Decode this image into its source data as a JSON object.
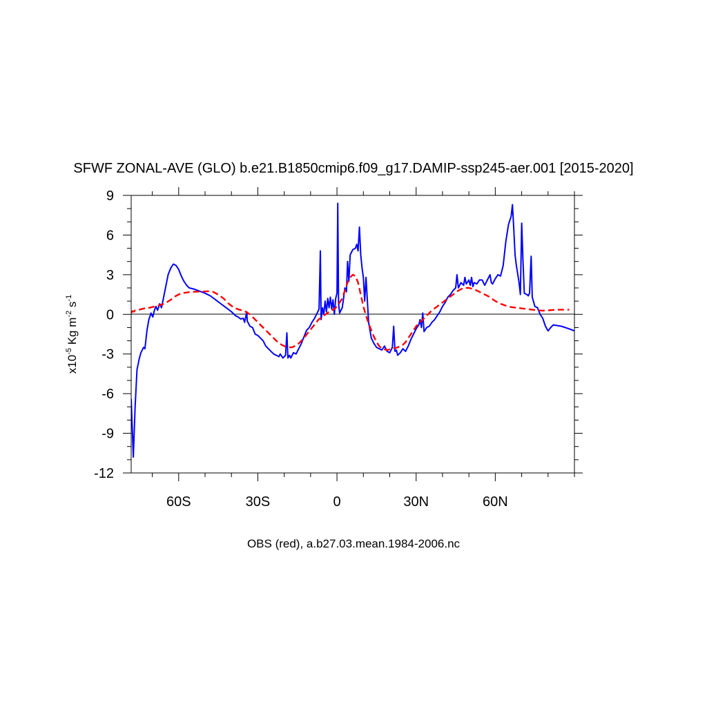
{
  "chart_data": {
    "type": "line",
    "title": "SFWF ZONAL-AVE (GLO) b.e21.B1850cmip6.f09_g17.DAMIP-ssp245-aer.001 [2015-2020]",
    "ylabel": {
      "prefix": "x10",
      "prefix_exp": "-5",
      "unit_a": " Kg m",
      "unit_a_exp": "-2",
      "unit_b": " s",
      "unit_b_exp": "-1"
    },
    "xlabel": "OBS (red), a.b27.03.mean.1984-2006.nc",
    "xlim": [
      -78,
      90
    ],
    "ylim": [
      -12,
      9
    ],
    "x_ticks": [
      {
        "value": -60,
        "label": "60S"
      },
      {
        "value": -30,
        "label": "30S"
      },
      {
        "value": 0,
        "label": "0"
      },
      {
        "value": 30,
        "label": "30N"
      },
      {
        "value": 60,
        "label": "60N"
      }
    ],
    "y_ticks": [
      {
        "value": 9,
        "label": "9"
      },
      {
        "value": 6,
        "label": "6"
      },
      {
        "value": 3,
        "label": "3"
      },
      {
        "value": 0,
        "label": "0"
      },
      {
        "value": -3,
        "label": "-3"
      },
      {
        "value": -6,
        "label": "-6"
      },
      {
        "value": -9,
        "label": "-9"
      },
      {
        "value": -12,
        "label": "-12"
      }
    ],
    "zero_line": true,
    "series": [
      {
        "color": "#0000ff",
        "style": "solid",
        "points": [
          [
            -78,
            -6.4
          ],
          [
            -77.2,
            -10.8
          ],
          [
            -76.5,
            -7
          ],
          [
            -75.8,
            -4.2
          ],
          [
            -75,
            -3.4
          ],
          [
            -74.3,
            -2.9
          ],
          [
            -73.3,
            -2.5
          ],
          [
            -72.8,
            -2.6
          ],
          [
            -72,
            -1.2
          ],
          [
            -71.3,
            -0.4
          ],
          [
            -70.5,
            0.1
          ],
          [
            -69.8,
            -0.2
          ],
          [
            -69.2,
            0.3
          ],
          [
            -68.6,
            0.6
          ],
          [
            -68,
            0.3
          ],
          [
            -67.2,
            0.8
          ],
          [
            -66.5,
            0.5
          ],
          [
            -66,
            1.0
          ],
          [
            -65,
            2.0
          ],
          [
            -64,
            3.0
          ],
          [
            -63,
            3.5
          ],
          [
            -62,
            3.8
          ],
          [
            -61,
            3.7
          ],
          [
            -60,
            3.4
          ],
          [
            -59,
            2.9
          ],
          [
            -58,
            2.5
          ],
          [
            -57,
            2.2
          ],
          [
            -56,
            2.0
          ],
          [
            -54,
            1.9
          ],
          [
            -52,
            1.75
          ],
          [
            -50,
            1.6
          ],
          [
            -48,
            1.4
          ],
          [
            -46,
            1.1
          ],
          [
            -44,
            0.8
          ],
          [
            -42,
            0.5
          ],
          [
            -40,
            0.2
          ],
          [
            -38.5,
            -0.1
          ],
          [
            -37.5,
            -0.2
          ],
          [
            -36.5,
            -0.35
          ],
          [
            -35.5,
            -0.3
          ],
          [
            -35,
            -0.6
          ],
          [
            -34.2,
            0.2
          ],
          [
            -34,
            -0.5
          ],
          [
            -33,
            -0.9
          ],
          [
            -32,
            -1.0
          ],
          [
            -31,
            -1.5
          ],
          [
            -30,
            -1.6
          ],
          [
            -29,
            -1.8
          ],
          [
            -28,
            -2.0
          ],
          [
            -27,
            -2.4
          ],
          [
            -26,
            -2.6
          ],
          [
            -25,
            -2.8
          ],
          [
            -24,
            -3.0
          ],
          [
            -23,
            -3.1
          ],
          [
            -22,
            -3.2
          ],
          [
            -21.5,
            -3.0
          ],
          [
            -20.5,
            -3.3
          ],
          [
            -19.5,
            -3.1
          ],
          [
            -19,
            -1.4
          ],
          [
            -18.6,
            -3.3
          ],
          [
            -18,
            -3.1
          ],
          [
            -17.5,
            -3.3
          ],
          [
            -16.5,
            -2.9
          ],
          [
            -15.5,
            -3.0
          ],
          [
            -14.5,
            -2.6
          ],
          [
            -13.5,
            -2.2
          ],
          [
            -12.5,
            -1.7
          ],
          [
            -11.5,
            -1.2
          ],
          [
            -10.5,
            -1.0
          ],
          [
            -9.5,
            -0.6
          ],
          [
            -8.5,
            -0.3
          ],
          [
            -7.5,
            0.1
          ],
          [
            -6.8,
            0.4
          ],
          [
            -6.3,
            4.8
          ],
          [
            -6,
            -0.4
          ],
          [
            -5.5,
            0.5
          ],
          [
            -5,
            0.0
          ],
          [
            -4.5,
            1.0
          ],
          [
            -4,
            0.2
          ],
          [
            -3.5,
            1.2
          ],
          [
            -3,
            0.5
          ],
          [
            -2.5,
            1.3
          ],
          [
            -2,
            0.4
          ],
          [
            -1.5,
            1.1
          ],
          [
            -1,
            0.0
          ],
          [
            -0.5,
            1.2
          ],
          [
            0,
            1.6
          ],
          [
            0.3,
            8.4
          ],
          [
            0.6,
            0.8
          ],
          [
            1,
            0.1
          ],
          [
            2,
            0.5
          ],
          [
            2.5,
            1.2
          ],
          [
            3,
            2.0
          ],
          [
            3.6,
            1.7
          ],
          [
            4,
            4.0
          ],
          [
            4.5,
            2.5
          ],
          [
            5,
            4.5
          ],
          [
            6,
            4.9
          ],
          [
            7,
            5.0
          ],
          [
            7.5,
            5.3
          ],
          [
            8,
            4.8
          ],
          [
            8.5,
            6.6
          ],
          [
            9,
            4.5
          ],
          [
            9.5,
            3.5
          ],
          [
            10,
            2.8
          ],
          [
            10.5,
            1.0
          ],
          [
            11,
            2.8
          ],
          [
            12,
            -0.6
          ],
          [
            13,
            -1.8
          ],
          [
            14,
            -2.2
          ],
          [
            15,
            -2.5
          ],
          [
            16,
            -2.6
          ],
          [
            17,
            -2.7
          ],
          [
            18,
            -2.4
          ],
          [
            19,
            -2.8
          ],
          [
            20,
            -2.9
          ],
          [
            21,
            -2.5
          ],
          [
            21.5,
            -0.9
          ],
          [
            22,
            -2.8
          ],
          [
            22.5,
            -2.7
          ],
          [
            23,
            -3.1
          ],
          [
            24,
            -2.9
          ],
          [
            25,
            -2.6
          ],
          [
            26,
            -2.8
          ],
          [
            27,
            -2.4
          ],
          [
            28,
            -1.9
          ],
          [
            29,
            -1.5
          ],
          [
            30,
            -1.1
          ],
          [
            31,
            -0.8
          ],
          [
            31.5,
            -0.4
          ],
          [
            32,
            -1.0
          ],
          [
            32.5,
            0.1
          ],
          [
            33,
            -1.3
          ],
          [
            34,
            -1.0
          ],
          [
            35,
            -0.9
          ],
          [
            36,
            -0.6
          ],
          [
            37,
            -0.4
          ],
          [
            38,
            -0.1
          ],
          [
            39,
            0.2
          ],
          [
            40,
            0.6
          ],
          [
            41,
            0.9
          ],
          [
            42,
            1.3
          ],
          [
            43,
            1.5
          ],
          [
            44,
            1.8
          ],
          [
            45,
            2.0
          ],
          [
            45.5,
            3.0
          ],
          [
            46,
            2.0
          ],
          [
            47,
            2.4
          ],
          [
            48,
            2.2
          ],
          [
            48.5,
            2.8
          ],
          [
            49,
            2.3
          ],
          [
            50,
            2.6
          ],
          [
            50.5,
            2.2
          ],
          [
            51,
            2.8
          ],
          [
            51.5,
            2.1
          ],
          [
            52,
            2.4
          ],
          [
            53,
            2.3
          ],
          [
            54,
            2.6
          ],
          [
            55,
            2.6
          ],
          [
            56,
            2.2
          ],
          [
            57,
            2.6
          ],
          [
            58,
            3.0
          ],
          [
            58.5,
            2.4
          ],
          [
            59,
            2.3
          ],
          [
            59.5,
            2.5
          ],
          [
            60,
            2.7
          ],
          [
            61,
            3.0
          ],
          [
            62,
            2.9
          ],
          [
            63,
            3.7
          ],
          [
            64,
            5.5
          ],
          [
            65,
            6.8
          ],
          [
            66,
            7.4
          ],
          [
            66.5,
            8.3
          ],
          [
            67,
            6.5
          ],
          [
            67.5,
            4.5
          ],
          [
            68,
            3.7
          ],
          [
            69,
            2.4
          ],
          [
            69.5,
            1.5
          ],
          [
            70,
            6.9
          ],
          [
            70.5,
            4.0
          ],
          [
            71,
            1.6
          ],
          [
            72,
            1.5
          ],
          [
            72.5,
            1.4
          ],
          [
            73,
            1.6
          ],
          [
            73.6,
            4.4
          ],
          [
            74,
            1.3
          ],
          [
            75,
            0.6
          ],
          [
            76,
            0.5
          ],
          [
            77,
            0.0
          ],
          [
            78,
            -0.3
          ],
          [
            79,
            -0.9
          ],
          [
            80,
            -1.25
          ],
          [
            81,
            -1.0
          ],
          [
            82,
            -0.8
          ],
          [
            85,
            -0.9
          ],
          [
            88,
            -1.1
          ],
          [
            90,
            -1.25
          ]
        ]
      },
      {
        "color": "#ff0000",
        "style": "dashed",
        "points": [
          [
            -78,
            0.1
          ],
          [
            -77.5,
            0.25
          ],
          [
            -77,
            0.2
          ],
          [
            -76.5,
            0.3
          ],
          [
            -75,
            0.35
          ],
          [
            -73,
            0.45
          ],
          [
            -71,
            0.5
          ],
          [
            -69,
            0.6
          ],
          [
            -67,
            0.7
          ],
          [
            -65,
            0.85
          ],
          [
            -63,
            1.1
          ],
          [
            -61,
            1.4
          ],
          [
            -59,
            1.6
          ],
          [
            -57,
            1.65
          ],
          [
            -55,
            1.7
          ],
          [
            -53,
            1.72
          ],
          [
            -51,
            1.72
          ],
          [
            -49,
            1.75
          ],
          [
            -47,
            1.7
          ],
          [
            -45,
            1.5
          ],
          [
            -43,
            1.2
          ],
          [
            -41,
            0.8
          ],
          [
            -39,
            0.5
          ],
          [
            -37,
            0.35
          ],
          [
            -35,
            0.25
          ],
          [
            -33,
            0.0
          ],
          [
            -31,
            -0.4
          ],
          [
            -29,
            -0.8
          ],
          [
            -27,
            -1.2
          ],
          [
            -25,
            -1.6
          ],
          [
            -23,
            -2.0
          ],
          [
            -21,
            -2.3
          ],
          [
            -19,
            -2.5
          ],
          [
            -17,
            -2.5
          ],
          [
            -15,
            -2.3
          ],
          [
            -13,
            -1.9
          ],
          [
            -11,
            -1.4
          ],
          [
            -9,
            -0.9
          ],
          [
            -7,
            -0.4
          ],
          [
            -5,
            -0.1
          ],
          [
            -3,
            0.2
          ],
          [
            -1,
            0.4
          ],
          [
            0,
            0.6
          ],
          [
            1,
            0.9
          ],
          [
            2,
            1.2
          ],
          [
            3,
            1.8
          ],
          [
            4,
            2.4
          ],
          [
            5,
            2.8
          ],
          [
            6,
            3.0
          ],
          [
            7,
            2.9
          ],
          [
            8,
            2.4
          ],
          [
            9,
            1.5
          ],
          [
            10,
            0.6
          ],
          [
            11,
            -0.1
          ],
          [
            12,
            -0.7
          ],
          [
            13,
            -1.2
          ],
          [
            14,
            -1.7
          ],
          [
            15,
            -2.1
          ],
          [
            16,
            -2.4
          ],
          [
            17,
            -2.6
          ],
          [
            18,
            -2.65
          ],
          [
            19,
            -2.7
          ],
          [
            20,
            -2.65
          ],
          [
            21,
            -2.6
          ],
          [
            22,
            -2.55
          ],
          [
            23,
            -2.5
          ],
          [
            24,
            -2.4
          ],
          [
            25,
            -2.3
          ],
          [
            26,
            -2.1
          ],
          [
            27,
            -1.8
          ],
          [
            28,
            -1.5
          ],
          [
            29,
            -1.2
          ],
          [
            30,
            -0.9
          ],
          [
            32,
            -0.5
          ],
          [
            34,
            -0.1
          ],
          [
            36,
            0.3
          ],
          [
            38,
            0.6
          ],
          [
            40,
            0.9
          ],
          [
            42,
            1.2
          ],
          [
            44,
            1.5
          ],
          [
            46,
            1.8
          ],
          [
            48,
            2.0
          ],
          [
            50,
            2.0
          ],
          [
            52,
            1.9
          ],
          [
            54,
            1.7
          ],
          [
            56,
            1.5
          ],
          [
            58,
            1.3
          ],
          [
            60,
            1.0
          ],
          [
            62,
            0.8
          ],
          [
            64,
            0.65
          ],
          [
            66,
            0.55
          ],
          [
            68,
            0.5
          ],
          [
            70,
            0.45
          ],
          [
            72,
            0.4
          ],
          [
            74,
            0.35
          ],
          [
            76,
            0.3
          ],
          [
            78,
            0.28
          ],
          [
            80,
            0.3
          ],
          [
            83,
            0.35
          ],
          [
            86,
            0.35
          ],
          [
            88,
            0.35
          ]
        ]
      }
    ]
  }
}
